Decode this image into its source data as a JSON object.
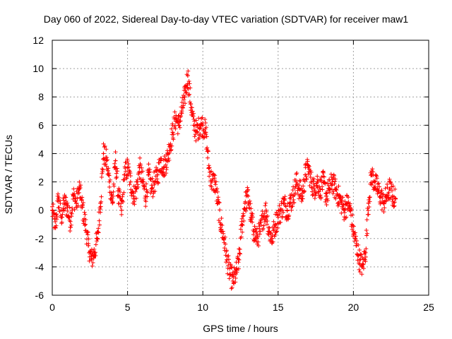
{
  "chart_data": {
    "type": "scatter",
    "title": "Day 060 of 2022, Sidereal Day-to-day VTEC variation (SDTVAR) for receiver maw1",
    "xlabel": "GPS time / hours",
    "ylabel": "SDTVAR / TECUs",
    "xlim": [
      0,
      25
    ],
    "ylim": [
      -6,
      12
    ],
    "xticks": [
      0,
      5,
      10,
      15,
      20,
      25
    ],
    "yticks": [
      -6,
      -4,
      -2,
      0,
      2,
      4,
      6,
      8,
      10,
      12
    ],
    "grid": true,
    "marker": "plus",
    "series": [
      {
        "name": "SDTVAR",
        "color": "#ff0000",
        "x": [
          0.0,
          0.2,
          0.4,
          0.6,
          0.8,
          1.0,
          1.2,
          1.4,
          1.6,
          1.8,
          2.0,
          2.2,
          2.4,
          2.6,
          2.8,
          3.0,
          3.2,
          3.4,
          3.6,
          3.8,
          4.0,
          4.2,
          4.4,
          4.6,
          4.8,
          5.0,
          5.2,
          5.4,
          5.6,
          5.8,
          6.0,
          6.2,
          6.4,
          6.6,
          6.8,
          7.0,
          7.2,
          7.4,
          7.6,
          7.8,
          8.0,
          8.2,
          8.4,
          8.6,
          8.8,
          9.0,
          9.2,
          9.4,
          9.6,
          9.8,
          10.0,
          10.2,
          10.4,
          10.6,
          10.8,
          11.0,
          11.2,
          11.4,
          11.6,
          11.8,
          12.0,
          12.2,
          12.4,
          12.6,
          12.8,
          13.0,
          13.2,
          13.4,
          13.6,
          13.8,
          14.0,
          14.2,
          14.4,
          14.6,
          14.8,
          15.0,
          15.2,
          15.4,
          15.6,
          15.8,
          16.0,
          16.2,
          16.4,
          16.6,
          16.8,
          17.0,
          17.2,
          17.4,
          17.6,
          17.8,
          18.0,
          18.2,
          18.4,
          18.6,
          18.8,
          19.0,
          19.2,
          19.4,
          19.6,
          19.8,
          20.0,
          20.2,
          20.4,
          20.6,
          20.8,
          21.0,
          21.2,
          21.4,
          21.6,
          21.8,
          22.0,
          22.2,
          22.4,
          22.6,
          22.8
        ],
        "y": [
          0.0,
          -1.2,
          0.8,
          -0.5,
          0.5,
          0.2,
          -0.8,
          1.0,
          0.5,
          1.5,
          0.2,
          -1.0,
          -2.5,
          -3.5,
          -3.0,
          -2.0,
          0.5,
          4.0,
          3.5,
          2.0,
          0.5,
          3.5,
          1.0,
          0.0,
          2.5,
          3.0,
          2.0,
          1.0,
          1.5,
          3.0,
          2.0,
          1.0,
          2.5,
          1.5,
          2.0,
          2.5,
          3.5,
          3.0,
          3.5,
          4.5,
          5.5,
          6.5,
          6.0,
          7.0,
          8.0,
          9.5,
          7.5,
          6.0,
          5.5,
          6.0,
          6.0,
          5.5,
          3.0,
          2.0,
          2.0,
          0.5,
          -1.0,
          -2.0,
          -3.5,
          -4.5,
          -5.0,
          -4.5,
          -3.5,
          -1.0,
          0.5,
          1.0,
          -0.5,
          -1.5,
          -2.0,
          -1.5,
          -0.5,
          0.0,
          -1.5,
          -2.0,
          -1.0,
          -0.5,
          0.0,
          0.5,
          0.0,
          0.5,
          1.0,
          2.0,
          1.5,
          1.0,
          2.5,
          3.0,
          2.0,
          1.5,
          2.0,
          1.5,
          2.0,
          1.0,
          1.5,
          2.0,
          1.5,
          1.0,
          0.5,
          0.0,
          0.5,
          0.0,
          -1.5,
          -2.5,
          -3.5,
          -4.0,
          -3.0,
          0.5,
          2.5,
          2.0,
          1.5,
          1.0,
          0.5,
          1.0,
          1.5,
          1.0,
          0.8
        ]
      }
    ]
  }
}
